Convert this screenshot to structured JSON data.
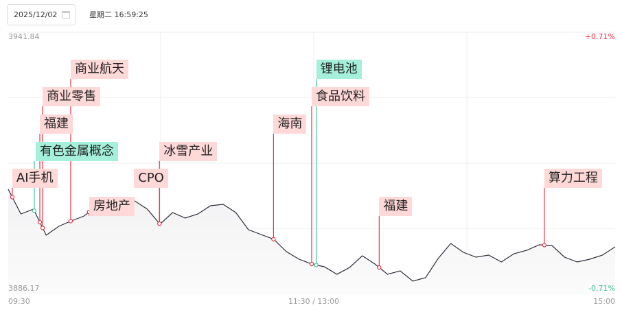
{
  "header": {
    "date": "2025/12/02",
    "datetime": "星期二 16:59:25",
    "calendar_icon": "calendar-icon"
  },
  "chart_data": {
    "type": "line",
    "y_top_label": "3941.84",
    "y_bottom_label": "3886.17",
    "pct_top_label": "+0.71%",
    "pct_bottom_label": "-0.71%",
    "ylim": [
      3886.17,
      3941.84
    ],
    "x_ticks": [
      "09:30",
      "11:30 / 13:00",
      "15:00"
    ],
    "x_minutes_total": 240,
    "grid": true,
    "colors": {
      "line": "#2b2b3a",
      "up": "#e8334a",
      "down": "#3ec49a",
      "red_bg": "#ffd8d8",
      "green_bg": "#a5f0da"
    },
    "minutes": [
      0,
      5,
      10,
      15,
      20,
      25,
      30,
      35,
      40,
      45,
      50,
      55,
      60,
      65,
      70,
      75,
      80,
      85,
      90,
      95,
      100,
      105,
      110,
      115,
      120,
      125,
      130,
      135,
      140,
      145,
      150,
      155,
      160,
      165,
      170,
      175,
      180,
      185,
      190,
      195,
      200,
      205,
      210,
      215,
      220,
      225,
      230,
      235,
      240
    ],
    "values": [
      3908.38,
      3903.12,
      3904.14,
      3898.59,
      3900.49,
      3901.66,
      3902.68,
      3904.87,
      3904.87,
      3905.16,
      3905.89,
      3904.14,
      3900.93,
      3903.41,
      3902.24,
      3903.12,
      3904.87,
      3905.16,
      3903.41,
      3899.76,
      3898.73,
      3897.71,
      3895.08,
      3893.47,
      3892.45,
      3891.87,
      3890.26,
      3891.72,
      3894.2,
      3892.45,
      3890.26,
      3890.99,
      3888.8,
      3889.53,
      3893.62,
      3896.84,
      3894.94,
      3893.91,
      3894.35,
      3892.89,
      3894.64,
      3895.37,
      3896.54,
      3896.4,
      3893.91,
      3892.89,
      3893.47,
      3894.35,
      3896.1
    ],
    "events": [
      {
        "label": "AI手机",
        "minute": 1.6,
        "color": "red"
      },
      {
        "label": "有色金属概念",
        "minute": 10.3,
        "color": "green"
      },
      {
        "label": "福建",
        "minute": 12.5,
        "color": "red"
      },
      {
        "label": "商业零售",
        "minute": 13.6,
        "color": "red"
      },
      {
        "label": "商业航天",
        "minute": 24.7,
        "color": "red"
      },
      {
        "label": "房地产",
        "minute": 32,
        "color": "red"
      },
      {
        "label": "CPO",
        "minute": 59.8,
        "color": "red"
      },
      {
        "label": "冰雪产业",
        "minute": 59.8,
        "color": "red"
      },
      {
        "label": "海南",
        "minute": 104.9,
        "color": "red"
      },
      {
        "label": "食品饮料",
        "minute": 120,
        "color": "red"
      },
      {
        "label": "锂电池",
        "minute": 121.8,
        "color": "green"
      },
      {
        "label": "福建",
        "minute": 146.7,
        "color": "red"
      },
      {
        "label": "算力工程",
        "minute": 212,
        "color": "red"
      }
    ]
  }
}
